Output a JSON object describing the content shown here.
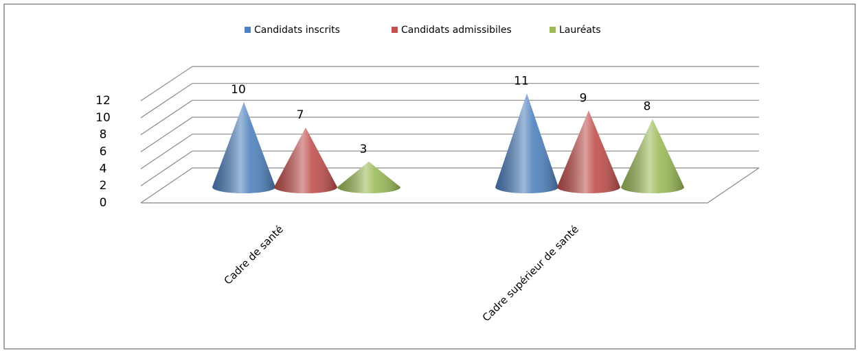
{
  "chart_data": {
    "type": "cone3d",
    "categories": [
      "Cadre de santé",
      "Cadre supérieur de santé"
    ],
    "series": [
      {
        "name": "Candidats inscrits",
        "color": "#4f81bd",
        "values": [
          10,
          11
        ]
      },
      {
        "name": "Candidats admissibiles",
        "color": "#c0504d",
        "values": [
          7,
          9
        ]
      },
      {
        "name": "Lauréats",
        "color": "#9bbb59",
        "values": [
          3,
          8
        ]
      }
    ],
    "ylim": [
      0,
      12
    ],
    "yticks": [
      0,
      2,
      4,
      6,
      8,
      10,
      12
    ],
    "grid": true,
    "legend": "top"
  }
}
